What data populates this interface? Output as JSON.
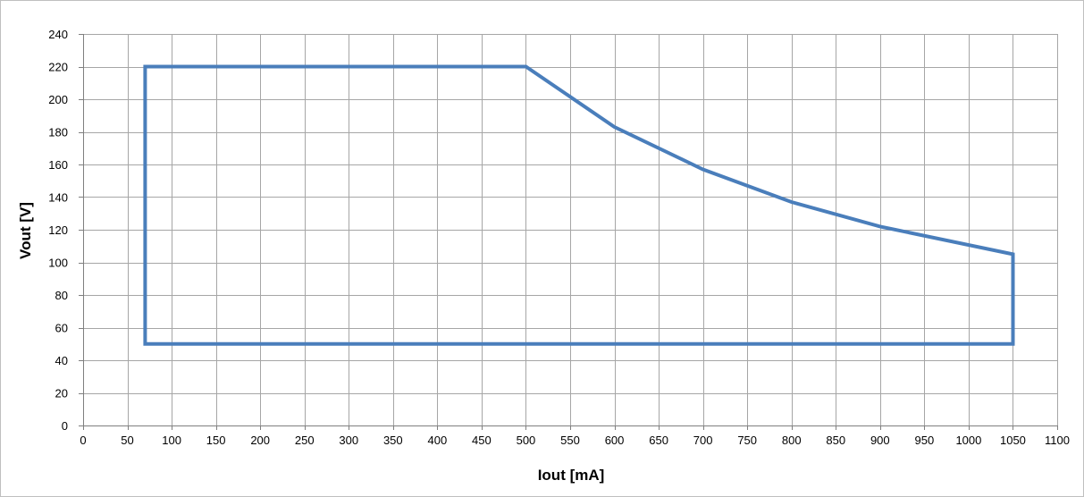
{
  "chart_data": {
    "type": "line",
    "title": "",
    "xlabel": "Iout [mA]",
    "ylabel": "Vout [V]",
    "xlim": [
      0,
      1100
    ],
    "ylim": [
      0,
      240
    ],
    "xticks": [
      0,
      50,
      100,
      150,
      200,
      250,
      300,
      350,
      400,
      450,
      500,
      550,
      600,
      650,
      700,
      750,
      800,
      850,
      900,
      950,
      1000,
      1050,
      1100
    ],
    "yticks": [
      0,
      20,
      40,
      60,
      80,
      100,
      120,
      140,
      160,
      180,
      200,
      220,
      240
    ],
    "grid": true,
    "legend": "none",
    "series": [
      {
        "color": "#4a7ebb",
        "x": [
          70,
          70,
          500,
          600,
          700,
          800,
          900,
          1050,
          1050,
          70
        ],
        "y": [
          50,
          220,
          220,
          183,
          157,
          137,
          122,
          105,
          50,
          50
        ]
      }
    ]
  }
}
